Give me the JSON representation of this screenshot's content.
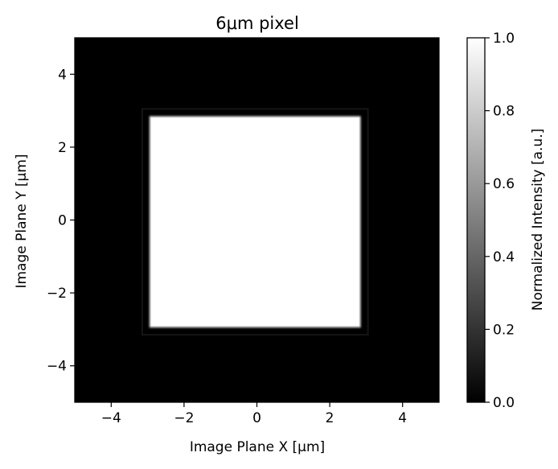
{
  "chart_data": {
    "type": "heatmap",
    "title": "6μm pixel",
    "xlabel": "Image Plane X [μm]",
    "ylabel": "Image Plane Y [μm]",
    "xlim": [
      -5,
      5
    ],
    "ylim": [
      -5,
      5
    ],
    "xticks": [
      -4,
      -2,
      0,
      2,
      4
    ],
    "yticks": [
      -4,
      -2,
      0,
      2,
      4
    ],
    "xtick_labels": [
      "−4",
      "−2",
      "0",
      "2",
      "4"
    ],
    "ytick_labels": [
      "−4",
      "−2",
      "0",
      "2",
      "4"
    ],
    "colormap": "gray",
    "background_value": 0.0,
    "pixel_region": {
      "x": [
        -2.95,
        2.85
      ],
      "y": [
        -2.95,
        2.85
      ],
      "value": 1.0
    },
    "colorbar": {
      "label": "Normalized Intensity [a.u.]",
      "range": [
        0.0,
        1.0
      ],
      "ticks": [
        0.0,
        0.2,
        0.4,
        0.6,
        0.8,
        1.0
      ],
      "tick_labels": [
        "0.0",
        "0.2",
        "0.4",
        "0.6",
        "0.8",
        "1.0"
      ]
    },
    "grid": false
  }
}
